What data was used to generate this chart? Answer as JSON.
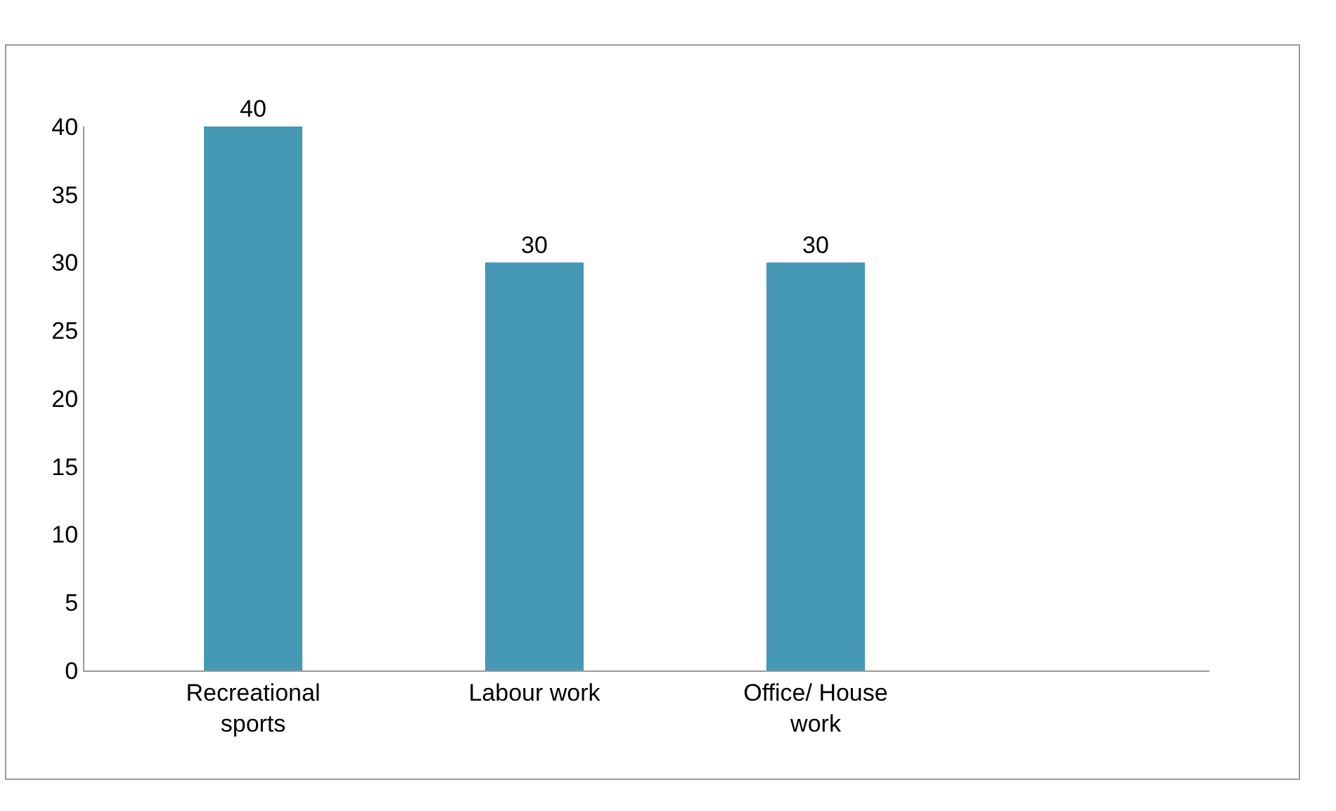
{
  "chart_data": {
    "type": "bar",
    "categories": [
      "Recreational sports",
      "Labour work",
      "Office/ House work"
    ],
    "values": [
      40,
      30,
      30
    ],
    "color": "#4599b4",
    "ylim": [
      0,
      40
    ],
    "yticks": [
      0,
      5,
      10,
      15,
      20,
      25,
      30,
      35,
      40
    ],
    "data_labels": true
  }
}
